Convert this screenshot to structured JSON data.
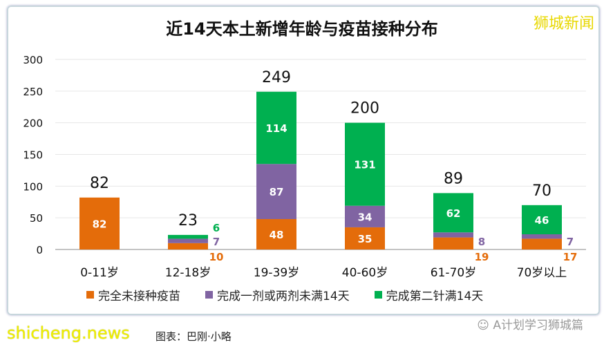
{
  "chart_data": {
    "type": "bar",
    "stacked": true,
    "title": "近14天本土新增年龄与疫苗接种分布",
    "categories": [
      "0-11岁",
      "12-18岁",
      "19-39岁",
      "40-60岁",
      "61-70岁",
      "70岁以上"
    ],
    "series": [
      {
        "name": "完全未接种疫苗",
        "color": "#E46C0A",
        "values": [
          82,
          10,
          48,
          35,
          19,
          17
        ]
      },
      {
        "name": "完成一剂或两剂未满14天",
        "color": "#8064A2",
        "values": [
          0,
          7,
          87,
          34,
          8,
          7
        ]
      },
      {
        "name": "完成第二针满14天",
        "color": "#00B050",
        "values": [
          0,
          6,
          114,
          131,
          62,
          46
        ]
      }
    ],
    "totals": [
      82,
      23,
      249,
      200,
      89,
      70
    ],
    "ylim": [
      0,
      300
    ],
    "yticks": [
      0,
      50,
      100,
      150,
      200,
      250,
      300
    ],
    "grid": true,
    "legend": "bottom"
  },
  "brand": "狮城新闻",
  "watermark": "shicheng.news",
  "caption": "图表：巴刚·小略",
  "wechat": "A计划学习狮城篇"
}
